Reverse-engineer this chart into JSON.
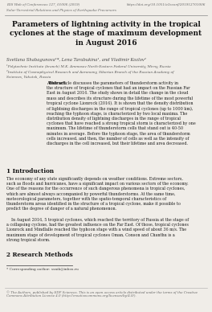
{
  "bg_color": "#f0ede8",
  "header_left": "E3S Web of Conferences 127, 01006 (2019)",
  "header_right": "https://doi.org/10.1051/e3sconf/201912701006",
  "header_sub": "Solar-Terrestrial Relations and Physics of Earthquake Precursors",
  "title": "Parameters of lightning activity in the tropical\ncyclones at the stage of maximum development\nin August 2016",
  "authors": "Svetlana Shabagunova¹*, Lena Tarabukina¹, and Vladimir Kozlov²",
  "affil1": "¹Polytechnic Institute (branch) M.K. Ammosov North-Eastern Federal University, Mirny, Russia",
  "affil2": "²Institute of Cosmophysical Research and Aeronomy, Siberian Branch of the Russian Academy of\nSciences, Yakutsk, Russia",
  "abstract_label": "Abstract.",
  "abstract_body": "This article discusses the parameters of thunderstorm activity in\nthe structure of tropical cyclones that had an impact on the Russian Far\nEast in August 2016. The study shows in detail the change in the cloud\nmass and describes its structure during the lifetime of the most powerful\ntropical cyclone Lionrock (2016). It is shown that the density distribution\nof lightning discharges in the range of tropical cyclones (up to 1000 km),\nreaching the typhoon stage, is characterized by two local maxima. The\ndistribution density of lightning discharges in the range of tropical\ncyclones that have reached a strong tropical storm is characterized by one\nmaximum. The lifetime of thunderstorm cells that stand out is 40-50\nminutes in average. Before the typhoon stage, the area of thunderstorm\ncells increased, and then, the number of cells as well as the intensity of\ndischarges in the cell increased, but their lifetime and area decreased.",
  "sec1_title": "1 Introduction",
  "sec1_p1": "The economy of any state significantly depends on weather conditions. Extreme sectors,\nsuch as floods and hurricanes, have a significant impact on various sectors of the economy.\nOne of the reasons for the occurrence of such dangerous phenomena is tropical cyclones,\nwhich are almost always accompanied by powerful thunderstorms. At the same time,\nmeteorological parameters, together with the spatio-temporal characteristics of\nthunderstorm areas identified in the structure of a tropical cyclone, make it possible to\npredict the degree of danger of a natural phenomenon.",
  "sec1_p2": "    In August 2016, 5 tropical cyclones, which reached the territory of Russia at the stage of\na collapsing cyclone, had the greatest influence on the Far East. Of those, tropical cyclones\nLionrock and Mindlalle reached the typhoon stage with a wind speed of about 36 m/s. The\nmaximum stage of development of tropical cyclones Oman, Conson and Chanthu is a\nstrong tropical storm.",
  "sec2_title": "2 Research Methods",
  "footnote": "* Corresponding author: ssnik@inbox.ru",
  "footer": "© The Authors, published by EDP Sciences. This is an open access article distributed under the terms of the Creative\nCommons Attribution License 4.0 (http://creativecommons.org/licenses/by/4.0/)."
}
